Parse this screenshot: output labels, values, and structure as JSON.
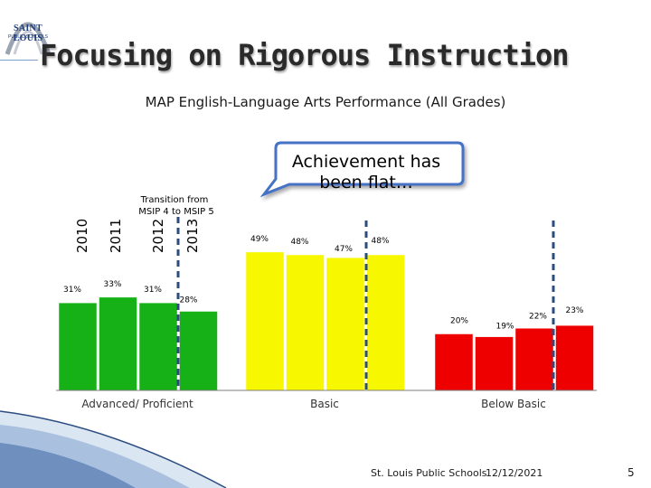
{
  "logo": {
    "text": "SAINT LOUIS",
    "subtext": "PUBLIC SCHOOLS"
  },
  "title": "Focusing on Rigorous Instruction",
  "subtitle": "MAP English-Language Arts Performance (All Grades)",
  "callout": {
    "line1": "Achievement has",
    "line2": "been flat…"
  },
  "transition_note": {
    "line1": "Transition from",
    "line2": "MSIP 4 to MSIP 5"
  },
  "colors": {
    "advanced": "#16b116",
    "basic": "#f7f700",
    "below": "#ee0000",
    "divider": "#2c4c80",
    "callout_border": "#4472c4"
  },
  "chart_data": {
    "type": "bar",
    "years": [
      "2010",
      "2011",
      "2012",
      "2013"
    ],
    "groups": [
      {
        "name": "Advanced/ Proficient",
        "values": [
          31,
          33,
          31,
          28
        ],
        "labels": [
          "31%",
          "33%",
          "31%",
          "28%"
        ]
      },
      {
        "name": "Basic",
        "values": [
          49,
          48,
          47,
          48
        ],
        "labels": [
          "49%",
          "48%",
          "47%",
          "48%"
        ]
      },
      {
        "name": "Below Basic",
        "values": [
          20,
          19,
          22,
          23
        ],
        "labels": [
          "20%",
          "19%",
          "22%",
          "23%"
        ]
      }
    ],
    "ylim": [
      0,
      60
    ],
    "grid": false
  },
  "footer": {
    "school": "St. Louis Public Schools",
    "date": "12/12/2021",
    "page": "5"
  }
}
